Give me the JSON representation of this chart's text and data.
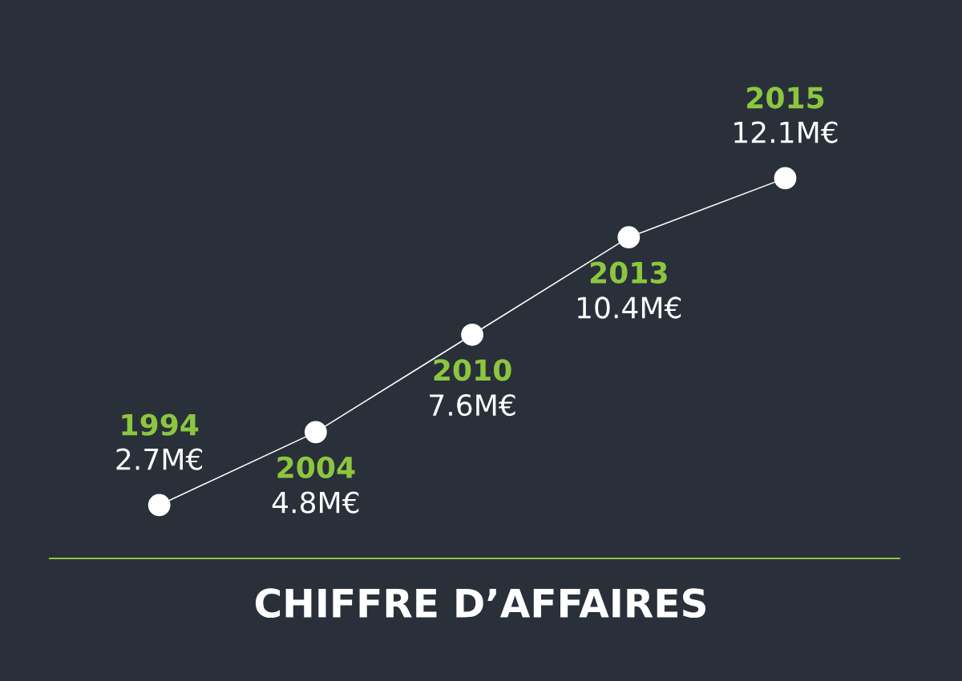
{
  "chart_data": {
    "type": "line",
    "title": "CHIFFRE D’AFFAIRES",
    "categories": [
      "1994",
      "2004",
      "2010",
      "2013",
      "2015"
    ],
    "values": [
      2.7,
      4.8,
      7.6,
      10.4,
      12.1
    ],
    "value_labels": [
      "2.7M€",
      "4.8M€",
      "7.6M€",
      "10.4M€",
      "12.1M€"
    ],
    "color": "#ffffff",
    "marker": "circle",
    "line_style": "solid",
    "tick_labels": false
  }
}
